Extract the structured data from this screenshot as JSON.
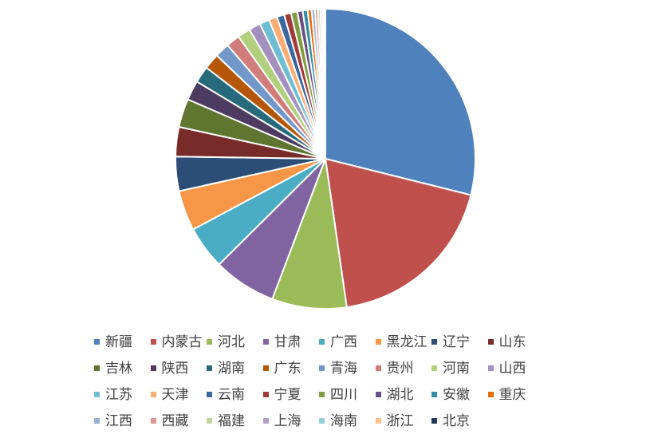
{
  "chart_data": {
    "type": "pie",
    "title": "",
    "categories": [
      "新疆",
      "内蒙古",
      "河北",
      "甘肃",
      "广西",
      "黑龙江",
      "辽宁",
      "山东",
      "吉林",
      "陕西",
      "湖南",
      "广东",
      "青海",
      "贵州",
      "河南",
      "山西",
      "江苏",
      "天津",
      "云南",
      "宁夏",
      "四川",
      "湖北",
      "安徽",
      "重庆",
      "江西",
      "西藏",
      "福建",
      "上海",
      "海南",
      "浙江",
      "北京"
    ],
    "values": [
      27.3,
      17.8,
      7.6,
      6.4,
      4.4,
      4.1,
      3.5,
      3.0,
      2.9,
      2.0,
      1.7,
      1.6,
      1.5,
      1.4,
      1.3,
      1.2,
      1.0,
      0.85,
      0.75,
      0.7,
      0.65,
      0.55,
      0.5,
      0.4,
      0.35,
      0.3,
      0.25,
      0.2,
      0.15,
      0.1,
      0.05
    ],
    "colors": [
      "#4F81BD",
      "#C0504D",
      "#9BBB59",
      "#8064A2",
      "#4BACC6",
      "#F79646",
      "#2C4D75",
      "#772C2A",
      "#5F7530",
      "#4D3B62",
      "#276A7C",
      "#B65708",
      "#7297C9",
      "#D07D7C",
      "#B2CF7D",
      "#A390BE",
      "#6FBDD4",
      "#F9AD73",
      "#3A67A0",
      "#9F3B38",
      "#7F9C40",
      "#665083",
      "#348DA7",
      "#E46C0A",
      "#97AFD1",
      "#D99796",
      "#C3D69B",
      "#B2A1C7",
      "#92CDDC",
      "#FAC090",
      "#1F3A5F"
    ],
    "start_angle": "12 o'clock",
    "direction": "clockwise",
    "legend_position": "bottom",
    "legend_columns": 8
  }
}
